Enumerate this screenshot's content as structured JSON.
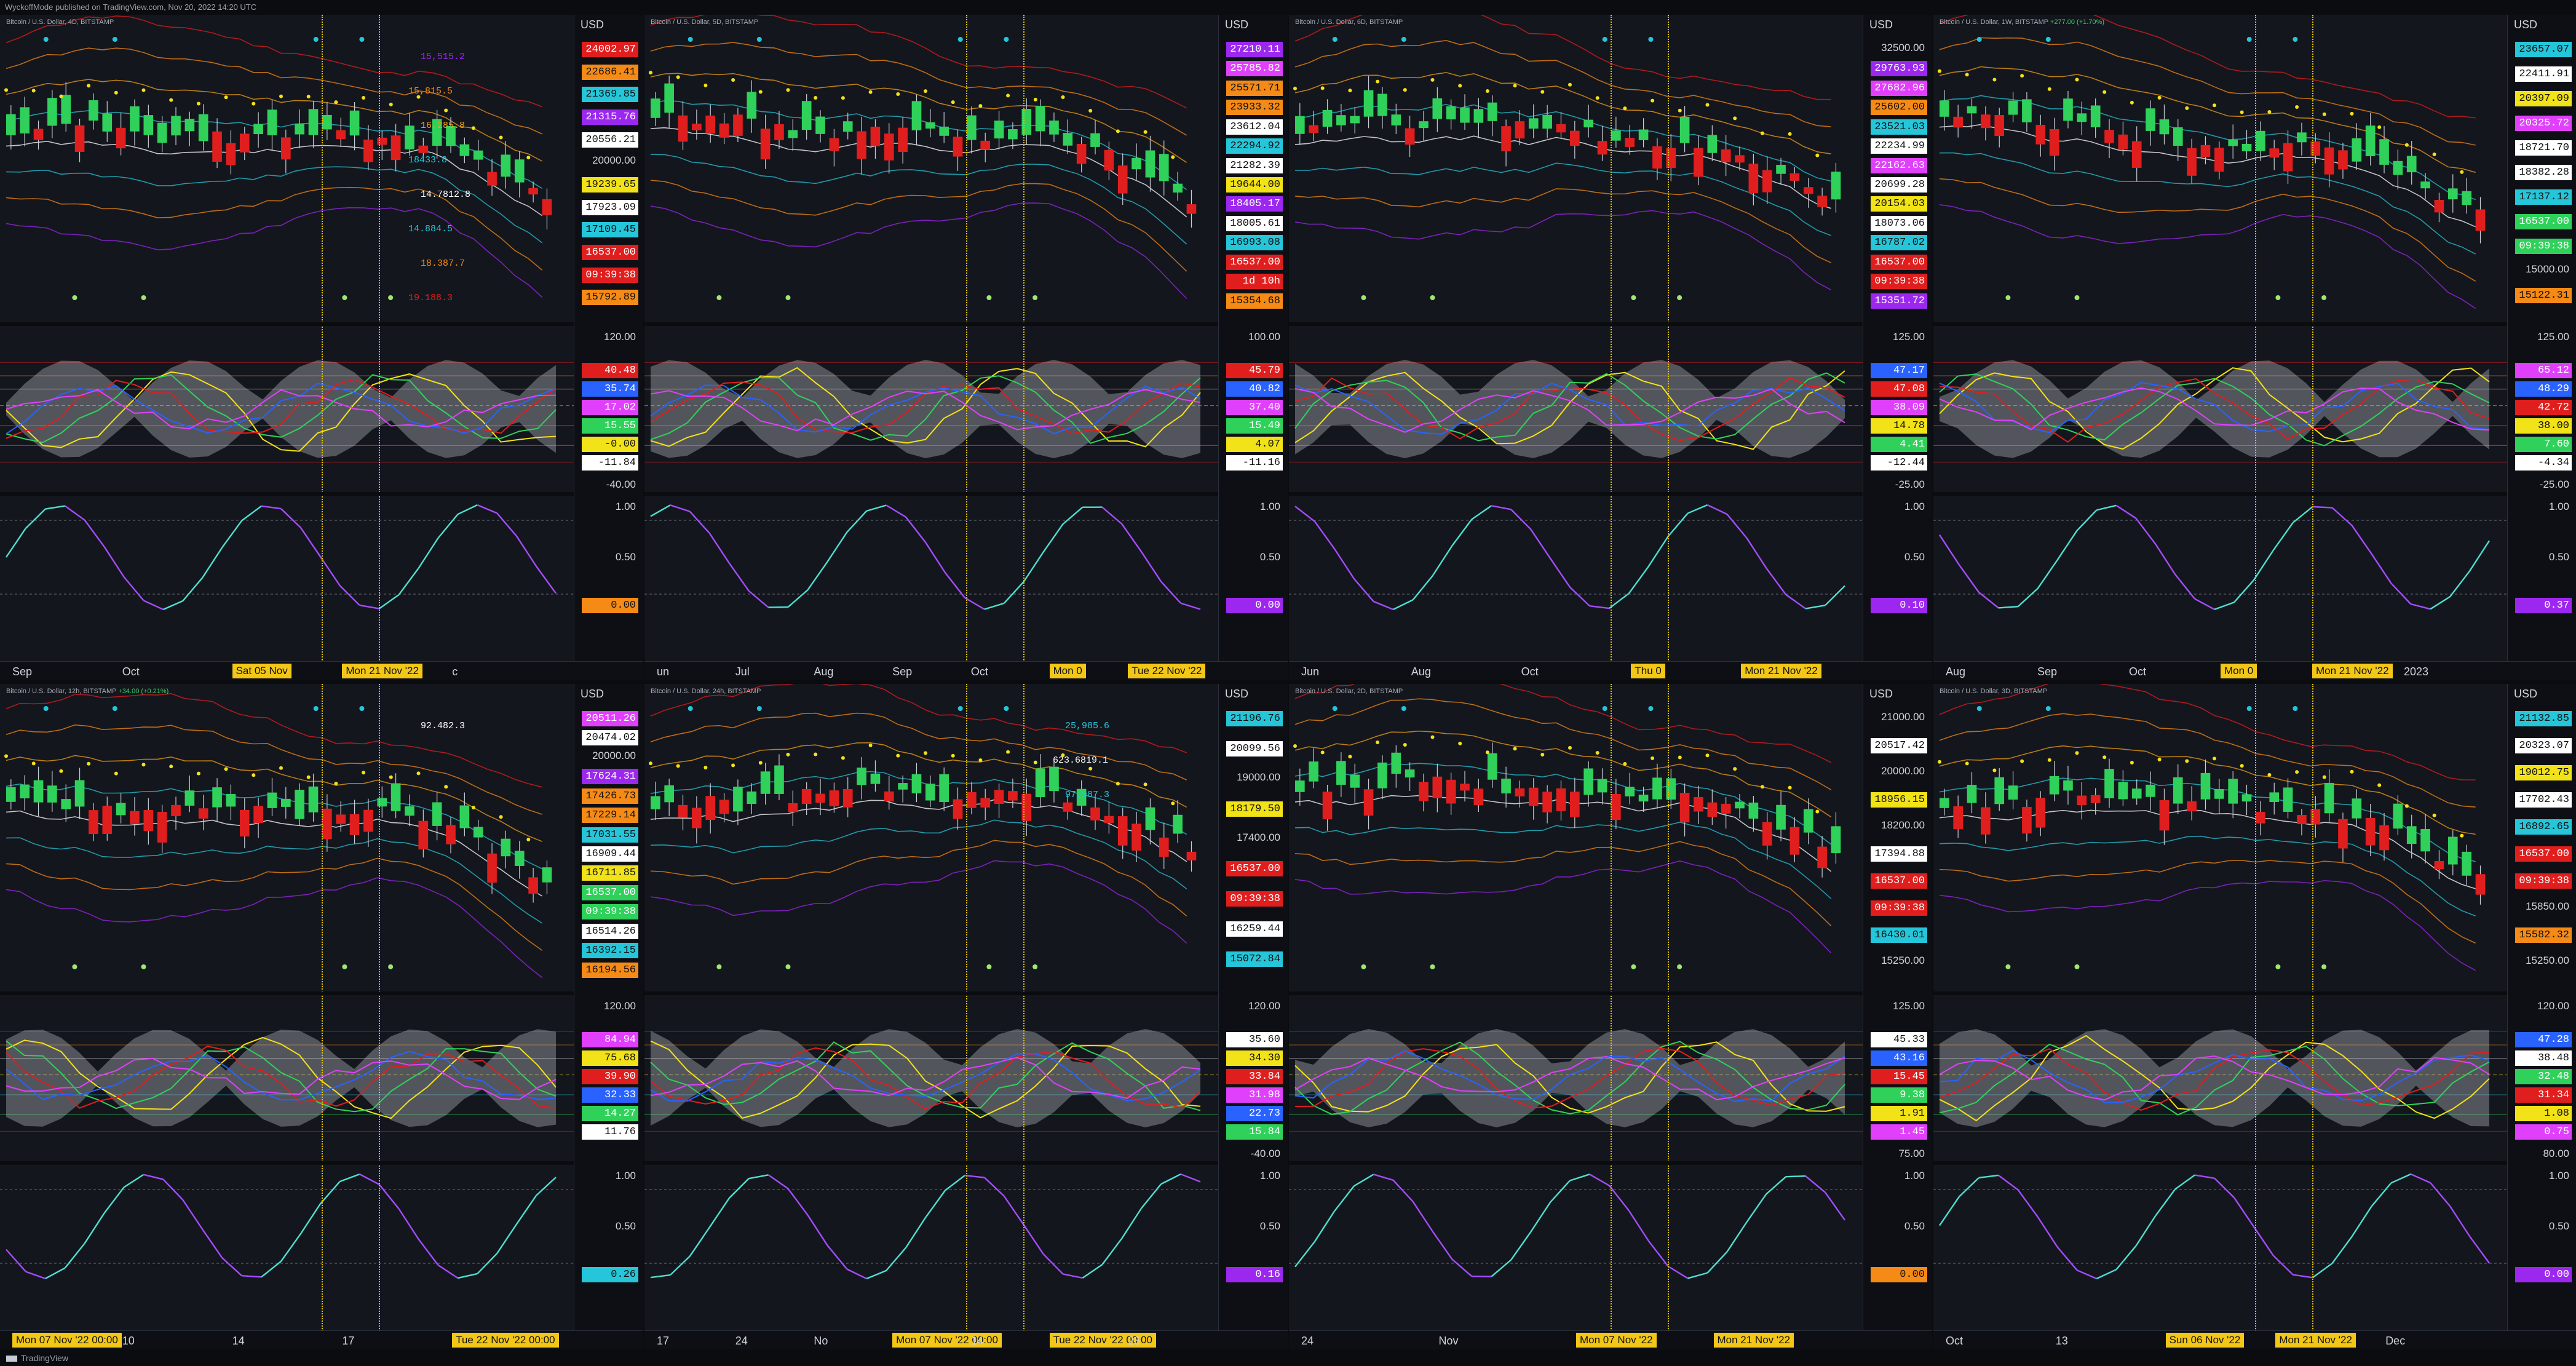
{
  "header": {
    "text": "WyckoffMode published on TradingView.com, Nov 20, 2022 14:20 UTC"
  },
  "footer": {
    "brand": "TradingView"
  },
  "colors": {
    "up": "#2fd15a",
    "down": "#e01e1e",
    "highlight": "#f2c718",
    "bg": "#14161d"
  },
  "charts": [
    {
      "title": "Bitcoin / U.S. Dollar, 4D, BITSTAMP",
      "change": "",
      "currency": "USD",
      "price_tags": [
        {
          "label": "24002.97",
          "bg": "#e01e1e"
        },
        {
          "label": "22686.41",
          "bg": "#f58a16"
        },
        {
          "label": "21369.85",
          "bg": "#26c6da"
        },
        {
          "label": "21315.76",
          "bg": "#9c27ef"
        },
        {
          "label": "20556.21",
          "bg": "#ffffff"
        },
        {
          "label": "20000.00",
          "bg": "",
          "plain": true
        },
        {
          "label": "19239.65",
          "bg": "#f2e218"
        },
        {
          "label": "17923.09",
          "bg": "#ffffff"
        },
        {
          "label": "17109.45",
          "bg": "#26c6da"
        },
        {
          "label": "16537.00",
          "bg": "#e01e1e"
        },
        {
          "label": "09:39:38",
          "bg": "#e01e1e"
        },
        {
          "label": "15792.89",
          "bg": "#f58a16"
        }
      ],
      "overlay_labels": [
        {
          "label": "15,515.2",
          "color": "#9c27ef"
        },
        {
          "label": "15,815.5",
          "color": "#f58a16"
        },
        {
          "label": "16,285.8",
          "color": "#f2a018"
        },
        {
          "label": "18433.8",
          "color": "#26c6da"
        },
        {
          "label": "14.7812.8",
          "color": "#ffffff"
        },
        {
          "label": "14.884.5",
          "color": "#26c6da"
        },
        {
          "label": "18.387.7",
          "color": "#f58a16"
        },
        {
          "label": "19.188.3",
          "color": "#e01e1e"
        }
      ],
      "osc_ticks": [
        "120.00",
        "80.00",
        "-40.00"
      ],
      "osc_tags": [
        {
          "label": "40.48",
          "bg": "#e01e1e"
        },
        {
          "label": "35.74",
          "bg": "#2962ff"
        },
        {
          "label": "17.02",
          "bg": "#e040fb"
        },
        {
          "label": "15.55",
          "bg": "#2fd15a"
        },
        {
          "label": "-0.00",
          "bg": "#f2e218"
        },
        {
          "label": "-11.84",
          "bg": "#ffffff"
        }
      ],
      "stoch_ticks": [
        "1.00",
        "0.50"
      ],
      "stoch_tag": {
        "label": "0.00",
        "bg": "#f58a16"
      },
      "time_labels": [
        {
          "label": "Sep",
          "hl": false
        },
        {
          "label": "Oct",
          "hl": false
        },
        {
          "label": "Sat 05 Nov",
          "hl": true
        },
        {
          "label": "Mon 21 Nov '22",
          "hl": true
        },
        {
          "label": "c",
          "hl": false
        }
      ]
    },
    {
      "title": "Bitcoin / U.S. Dollar, 5D, BITSTAMP",
      "change": "",
      "currency": "USD",
      "price_tags": [
        {
          "label": "27210.11",
          "bg": "#9c27ef"
        },
        {
          "label": "25785.82",
          "bg": "#e040fb"
        },
        {
          "label": "25571.71",
          "bg": "#f58a16"
        },
        {
          "label": "23933.32",
          "bg": "#f58a16"
        },
        {
          "label": "23612.04",
          "bg": "#ffffff"
        },
        {
          "label": "22294.92",
          "bg": "#26c6da"
        },
        {
          "label": "21282.39",
          "bg": "#ffffff"
        },
        {
          "label": "19644.00",
          "bg": "#f2e218"
        },
        {
          "label": "18405.17",
          "bg": "#9c27ef"
        },
        {
          "label": "18005.61",
          "bg": "#ffffff"
        },
        {
          "label": "16993.08",
          "bg": "#26c6da"
        },
        {
          "label": "16537.00",
          "bg": "#e01e1e"
        },
        {
          "label": "1d 10h",
          "bg": "#e01e1e"
        },
        {
          "label": "15354.68",
          "bg": "#f58a16"
        }
      ],
      "overlay_labels": [],
      "osc_ticks": [
        "100.00"
      ],
      "osc_tags": [
        {
          "label": "45.79",
          "bg": "#e01e1e"
        },
        {
          "label": "40.82",
          "bg": "#2962ff"
        },
        {
          "label": "37.40",
          "bg": "#e040fb"
        },
        {
          "label": "15.49",
          "bg": "#2fd15a"
        },
        {
          "label": "4.07",
          "bg": "#f2e218"
        },
        {
          "label": "-11.16",
          "bg": "#ffffff"
        }
      ],
      "stoch_ticks": [
        "1.00",
        "0.50"
      ],
      "stoch_tag": {
        "label": "0.00",
        "bg": "#9c27ef"
      },
      "time_labels": [
        {
          "label": "un",
          "hl": false
        },
        {
          "label": "Jul",
          "hl": false
        },
        {
          "label": "Aug",
          "hl": false
        },
        {
          "label": "Sep",
          "hl": false
        },
        {
          "label": "Oct",
          "hl": false
        },
        {
          "label": "Mon 0",
          "hl": true
        },
        {
          "label": "Tue 22 Nov '22",
          "hl": true
        }
      ]
    },
    {
      "title": "Bitcoin / U.S. Dollar, 6D, BITSTAMP",
      "change": "",
      "currency": "USD",
      "price_tags": [
        {
          "label": "32500.00",
          "bg": "",
          "plain": true
        },
        {
          "label": "29763.93",
          "bg": "#9c27ef"
        },
        {
          "label": "27682.96",
          "bg": "#e040fb"
        },
        {
          "label": "25602.00",
          "bg": "#f58a16"
        },
        {
          "label": "23521.03",
          "bg": "#26c6da"
        },
        {
          "label": "22234.99",
          "bg": "#ffffff"
        },
        {
          "label": "22162.63",
          "bg": "#e040fb"
        },
        {
          "label": "20699.28",
          "bg": "#ffffff"
        },
        {
          "label": "20154.03",
          "bg": "#f2e218"
        },
        {
          "label": "18073.06",
          "bg": "#ffffff"
        },
        {
          "label": "16787.02",
          "bg": "#26c6da"
        },
        {
          "label": "16537.00",
          "bg": "#e01e1e"
        },
        {
          "label": "09:39:38",
          "bg": "#e01e1e"
        },
        {
          "label": "15351.72",
          "bg": "#9c27ef"
        }
      ],
      "overlay_labels": [],
      "osc_ticks": [
        "125.00",
        "100.00",
        "-25.00"
      ],
      "osc_tags": [
        {
          "label": "47.17",
          "bg": "#2962ff"
        },
        {
          "label": "47.08",
          "bg": "#e01e1e"
        },
        {
          "label": "38.09",
          "bg": "#e040fb"
        },
        {
          "label": "14.78",
          "bg": "#f2e218"
        },
        {
          "label": "4.41",
          "bg": "#2fd15a"
        },
        {
          "label": "-12.44",
          "bg": "#ffffff"
        }
      ],
      "stoch_ticks": [
        "1.00",
        "0.50"
      ],
      "stoch_tag": {
        "label": "0.10",
        "bg": "#9c27ef"
      },
      "time_labels": [
        {
          "label": "Jun",
          "hl": false
        },
        {
          "label": "Aug",
          "hl": false
        },
        {
          "label": "Oct",
          "hl": false
        },
        {
          "label": "Thu 0",
          "hl": true
        },
        {
          "label": "Mon 21 Nov '22",
          "hl": true
        }
      ]
    },
    {
      "title": "Bitcoin / U.S. Dollar, 1W, BITSTAMP",
      "change": "+277.00 (+1.70%)",
      "change_up": true,
      "currency": "USD",
      "price_tags": [
        {
          "label": "23657.07",
          "bg": "#26c6da"
        },
        {
          "label": "22411.91",
          "bg": "#ffffff"
        },
        {
          "label": "20397.09",
          "bg": "#f2e218"
        },
        {
          "label": "20325.72",
          "bg": "#e040fb"
        },
        {
          "label": "18721.70",
          "bg": "#ffffff"
        },
        {
          "label": "18382.28",
          "bg": "#ffffff"
        },
        {
          "label": "17137.12",
          "bg": "#26c6da"
        },
        {
          "label": "16537.00",
          "bg": "#2fd15a"
        },
        {
          "label": "09:39:38",
          "bg": "#2fd15a"
        },
        {
          "label": "15000.00",
          "bg": "",
          "plain": true
        },
        {
          "label": "15122.31",
          "bg": "#f58a16"
        }
      ],
      "overlay_labels": [],
      "osc_ticks": [
        "125.00",
        "100.00",
        "75.00",
        "25.00",
        "-25.00"
      ],
      "osc_tags": [
        {
          "label": "65.12",
          "bg": "#e040fb"
        },
        {
          "label": "48.29",
          "bg": "#2962ff"
        },
        {
          "label": "42.72",
          "bg": "#e01e1e"
        },
        {
          "label": "38.00",
          "bg": "#f2e218"
        },
        {
          "label": "7.60",
          "bg": "#2fd15a"
        },
        {
          "label": "-4.34",
          "bg": "#ffffff"
        }
      ],
      "stoch_ticks": [
        "1.00",
        "0.50"
      ],
      "stoch_tag": {
        "label": "0.37",
        "bg": "#9c27ef"
      },
      "time_labels": [
        {
          "label": "Aug",
          "hl": false
        },
        {
          "label": "Sep",
          "hl": false
        },
        {
          "label": "Oct",
          "hl": false
        },
        {
          "label": "Mon 0",
          "hl": true
        },
        {
          "label": "Mon 21 Nov '22",
          "hl": true
        },
        {
          "label": "2023",
          "hl": false
        }
      ]
    },
    {
      "title": "Bitcoin / U.S. Dollar, 12h, BITSTAMP",
      "change": "+34.00 (+0.21%)",
      "change_up": true,
      "currency": "USD",
      "price_tags": [
        {
          "label": "20511.26",
          "bg": "#e040fb"
        },
        {
          "label": "20474.02",
          "bg": "#ffffff"
        },
        {
          "label": "20000.00",
          "bg": "",
          "plain": true
        },
        {
          "label": "17624.31",
          "bg": "#9c27ef"
        },
        {
          "label": "17426.73",
          "bg": "#f58a16"
        },
        {
          "label": "17229.14",
          "bg": "#f58a16"
        },
        {
          "label": "17031.55",
          "bg": "#26c6da"
        },
        {
          "label": "16909.44",
          "bg": "#ffffff"
        },
        {
          "label": "16711.85",
          "bg": "#f2e218"
        },
        {
          "label": "16537.00",
          "bg": "#2fd15a"
        },
        {
          "label": "09:39:38",
          "bg": "#2fd15a"
        },
        {
          "label": "16514.26",
          "bg": "#ffffff"
        },
        {
          "label": "16392.15",
          "bg": "#26c6da"
        },
        {
          "label": "16194.56",
          "bg": "#f58a16"
        }
      ],
      "overlay_labels": [
        {
          "label": "92.482.3",
          "color": "#ffffff"
        }
      ],
      "osc_ticks": [
        "120.00"
      ],
      "osc_tags": [
        {
          "label": "84.94",
          "bg": "#e040fb"
        },
        {
          "label": "75.68",
          "bg": "#f2e218"
        },
        {
          "label": "39.90",
          "bg": "#e01e1e"
        },
        {
          "label": "32.33",
          "bg": "#2962ff"
        },
        {
          "label": "14.27",
          "bg": "#2fd15a"
        },
        {
          "label": "11.76",
          "bg": "#ffffff"
        }
      ],
      "stoch_ticks": [
        "1.00",
        "0.50",
        "0.00"
      ],
      "stoch_tag": {
        "label": "0.26",
        "bg": "#26c6da"
      },
      "time_labels": [
        {
          "label": "Mon 07 Nov '22   00:00",
          "hl": true
        },
        {
          "label": "10",
          "hl": false
        },
        {
          "label": "14",
          "hl": false
        },
        {
          "label": "17",
          "hl": false
        },
        {
          "label": "Tue 22 Nov '22   00:00",
          "hl": true
        }
      ]
    },
    {
      "title": "Bitcoin / U.S. Dollar, 24h, BITSTAMP",
      "change": "",
      "currency": "USD",
      "price_tags": [
        {
          "label": "21196.76",
          "bg": "#26c6da"
        },
        {
          "label": "20099.56",
          "bg": "#ffffff"
        },
        {
          "label": "19000.00",
          "bg": "",
          "plain": true
        },
        {
          "label": "18179.50",
          "bg": "#f2e218"
        },
        {
          "label": "17400.00",
          "bg": "",
          "plain": true
        },
        {
          "label": "16537.00",
          "bg": "#e01e1e"
        },
        {
          "label": "09:39:38",
          "bg": "#e01e1e"
        },
        {
          "label": "16259.44",
          "bg": "#ffffff"
        },
        {
          "label": "15072.84",
          "bg": "#26c6da"
        }
      ],
      "overlay_labels": [
        {
          "label": "25,985.6",
          "color": "#26c6da"
        },
        {
          "label": "623.6819.1",
          "color": "#ffffff"
        },
        {
          "label": "97,987.3",
          "color": "#26c6da"
        }
      ],
      "osc_ticks": [
        "120.00",
        "0.00",
        "-40.00"
      ],
      "osc_tags": [
        {
          "label": "35.60",
          "bg": "#ffffff"
        },
        {
          "label": "34.30",
          "bg": "#f2e218"
        },
        {
          "label": "33.84",
          "bg": "#e01e1e"
        },
        {
          "label": "31.98",
          "bg": "#e040fb"
        },
        {
          "label": "22.73",
          "bg": "#2962ff"
        },
        {
          "label": "15.84",
          "bg": "#2fd15a"
        }
      ],
      "stoch_ticks": [
        "1.00",
        "0.50",
        "0.00"
      ],
      "stoch_tag": {
        "label": "0.16",
        "bg": "#9c27ef"
      },
      "time_labels": [
        {
          "label": "17",
          "hl": false
        },
        {
          "label": "24",
          "hl": false
        },
        {
          "label": "No",
          "hl": false
        },
        {
          "label": "Mon 07 Nov '22   00:00",
          "hl": true
        },
        {
          "label": "14",
          "hl": false
        },
        {
          "label": "Tue 22 Nov '22   00:00",
          "hl": true
        },
        {
          "label": "28",
          "hl": false
        }
      ]
    },
    {
      "title": "Bitcoin / U.S. Dollar, 2D, BITSTAMP",
      "change": "",
      "currency": "USD",
      "price_tags": [
        {
          "label": "21000.00",
          "bg": "",
          "plain": true
        },
        {
          "label": "20517.42",
          "bg": "#ffffff"
        },
        {
          "label": "20000.00",
          "bg": "",
          "plain": true
        },
        {
          "label": "18956.15",
          "bg": "#f2e218"
        },
        {
          "label": "18200.00",
          "bg": "",
          "plain": true
        },
        {
          "label": "17394.88",
          "bg": "#ffffff"
        },
        {
          "label": "16537.00",
          "bg": "#e01e1e"
        },
        {
          "label": "09:39:38",
          "bg": "#e01e1e"
        },
        {
          "label": "16430.01",
          "bg": "#26c6da"
        },
        {
          "label": "15250.00",
          "bg": "",
          "plain": true
        }
      ],
      "overlay_labels": [],
      "osc_ticks": [
        "125.00",
        "75.00"
      ],
      "osc_tags": [
        {
          "label": "45.33",
          "bg": "#ffffff"
        },
        {
          "label": "43.16",
          "bg": "#2962ff"
        },
        {
          "label": "15.45",
          "bg": "#e01e1e"
        },
        {
          "label": "9.38",
          "bg": "#2fd15a"
        },
        {
          "label": "1.91",
          "bg": "#f2e218"
        },
        {
          "label": "1.45",
          "bg": "#e040fb"
        }
      ],
      "stoch_ticks": [
        "1.00",
        "0.50"
      ],
      "stoch_tag": {
        "label": "0.00",
        "bg": "#f58a16"
      },
      "time_labels": [
        {
          "label": "24",
          "hl": false
        },
        {
          "label": "Nov",
          "hl": false
        },
        {
          "label": "Mon 07 Nov '22",
          "hl": true
        },
        {
          "label": "Mon 21 Nov '22",
          "hl": true
        }
      ]
    },
    {
      "title": "Bitcoin / U.S. Dollar, 3D, BITSTAMP",
      "change": "",
      "currency": "USD",
      "price_tags": [
        {
          "label": "21132.85",
          "bg": "#26c6da"
        },
        {
          "label": "20323.07",
          "bg": "#ffffff"
        },
        {
          "label": "19012.75",
          "bg": "#f2e218"
        },
        {
          "label": "17702.43",
          "bg": "#ffffff"
        },
        {
          "label": "16892.65",
          "bg": "#26c6da"
        },
        {
          "label": "16537.00",
          "bg": "#e01e1e"
        },
        {
          "label": "09:39:38",
          "bg": "#e01e1e"
        },
        {
          "label": "15850.00",
          "bg": "",
          "plain": true
        },
        {
          "label": "15582.32",
          "bg": "#f58a16"
        },
        {
          "label": "15250.00",
          "bg": "",
          "plain": true
        }
      ],
      "overlay_labels": [],
      "osc_ticks": [
        "120.00",
        "80.00"
      ],
      "osc_tags": [
        {
          "label": "47.28",
          "bg": "#2962ff"
        },
        {
          "label": "38.48",
          "bg": "#ffffff"
        },
        {
          "label": "32.48",
          "bg": "#2fd15a"
        },
        {
          "label": "31.34",
          "bg": "#e01e1e"
        },
        {
          "label": "1.08",
          "bg": "#f2e218"
        },
        {
          "label": "0.75",
          "bg": "#e040fb"
        }
      ],
      "stoch_ticks": [
        "1.00",
        "0.50",
        "0.00"
      ],
      "stoch_tag": {
        "label": "0.00",
        "bg": "#9c27ef"
      },
      "time_labels": [
        {
          "label": "Oct",
          "hl": false
        },
        {
          "label": "13",
          "hl": false
        },
        {
          "label": "Sun 06 Nov '22",
          "hl": true
        },
        {
          "label": "Mon 21 Nov '22",
          "hl": true
        },
        {
          "label": "Dec",
          "hl": false
        }
      ]
    }
  ]
}
